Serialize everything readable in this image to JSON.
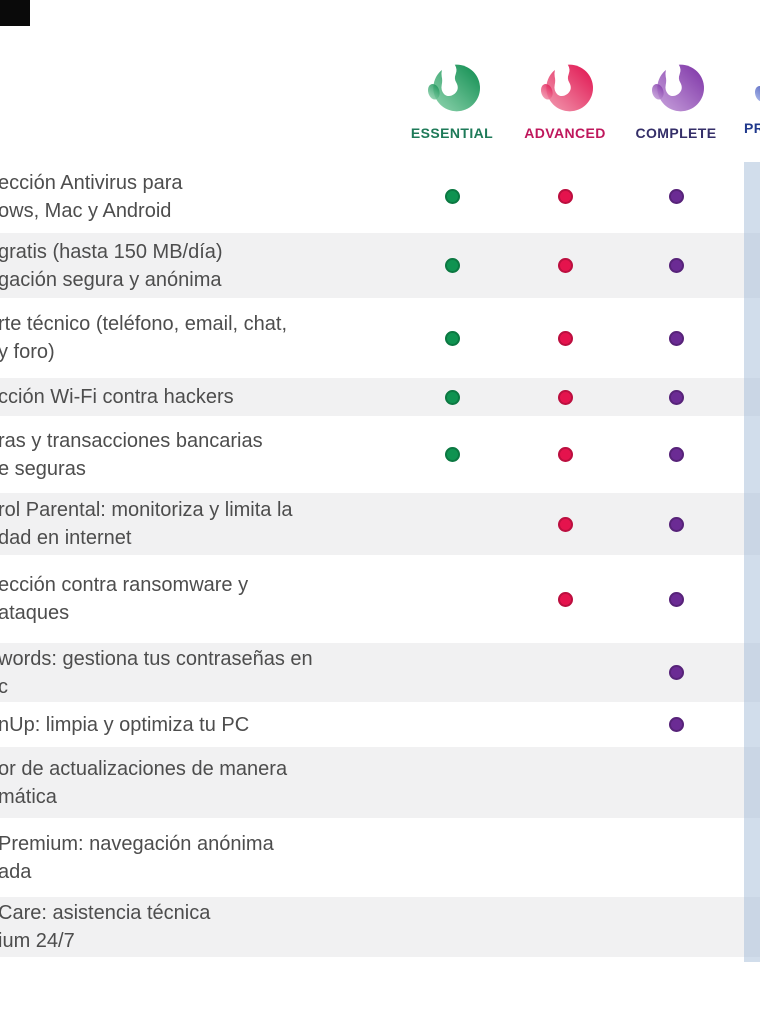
{
  "header": {
    "plans": [
      {
        "key": "essential",
        "label": "ESSENTIAL",
        "label_color": "#1e7a58",
        "dot_color": "#0f9351",
        "logo_light": "#93d6b1",
        "logo_dark": "#0d8c4f",
        "logo_icon": "panda-logo"
      },
      {
        "key": "advanced",
        "label": "ADVANCED",
        "label_color": "#bf175c",
        "dot_color": "#e5134d",
        "logo_light": "#f29db2",
        "logo_dark": "#e0114e",
        "logo_icon": "panda-logo"
      },
      {
        "key": "complete",
        "label": "COMPLETE",
        "label_color": "#342e68",
        "dot_color": "#6b2b94",
        "logo_light": "#c9a4dd",
        "logo_dark": "#7c31a5",
        "logo_icon": "panda-logo"
      },
      {
        "key": "prime",
        "label": "PR",
        "label_color": "#20398c",
        "dot_color": "#3b4cb5",
        "logo_light": "#9fb0e8",
        "logo_dark": "#3b4cb5",
        "logo_icon": "panda-logo",
        "partially_visible": true
      }
    ]
  },
  "table": {
    "rows": [
      {
        "lines": [
          "ección Antivirus para",
          "ows, Mac y Android"
        ],
        "included": [
          "essential",
          "advanced",
          "complete"
        ]
      },
      {
        "lines": [
          "gratis (hasta 150 MB/día)",
          "gación segura y anónima"
        ],
        "included": [
          "essential",
          "advanced",
          "complete"
        ]
      },
      {
        "lines": [
          "rte técnico (teléfono, email, chat,",
          "y foro)"
        ],
        "included": [
          "essential",
          "advanced",
          "complete"
        ]
      },
      {
        "lines": [
          "cción Wi-Fi contra hackers"
        ],
        "included": [
          "essential",
          "advanced",
          "complete"
        ]
      },
      {
        "lines": [
          "ras y transacciones bancarias",
          "e seguras"
        ],
        "included": [
          "essential",
          "advanced",
          "complete"
        ]
      },
      {
        "lines": [
          "rol Parental: monitoriza y limita la",
          "dad en internet"
        ],
        "included": [
          "advanced",
          "complete"
        ]
      },
      {
        "lines": [
          "ección contra ransomware y",
          "ataques"
        ],
        "included": [
          "advanced",
          "complete"
        ]
      },
      {
        "lines": [
          "words: gestiona tus contraseñas en",
          "c"
        ],
        "included": [
          "complete"
        ]
      },
      {
        "lines": [
          "nUp: limpia y optimiza tu PC"
        ],
        "included": [
          "complete"
        ]
      },
      {
        "lines": [
          "or de actualizaciones de manera",
          "mática"
        ],
        "included": []
      },
      {
        "lines": [
          "Premium: navegación anónima",
          "ada"
        ],
        "included": []
      },
      {
        "lines": [
          "Care: asistencia técnica",
          "ium 24/7"
        ],
        "included": []
      }
    ]
  }
}
